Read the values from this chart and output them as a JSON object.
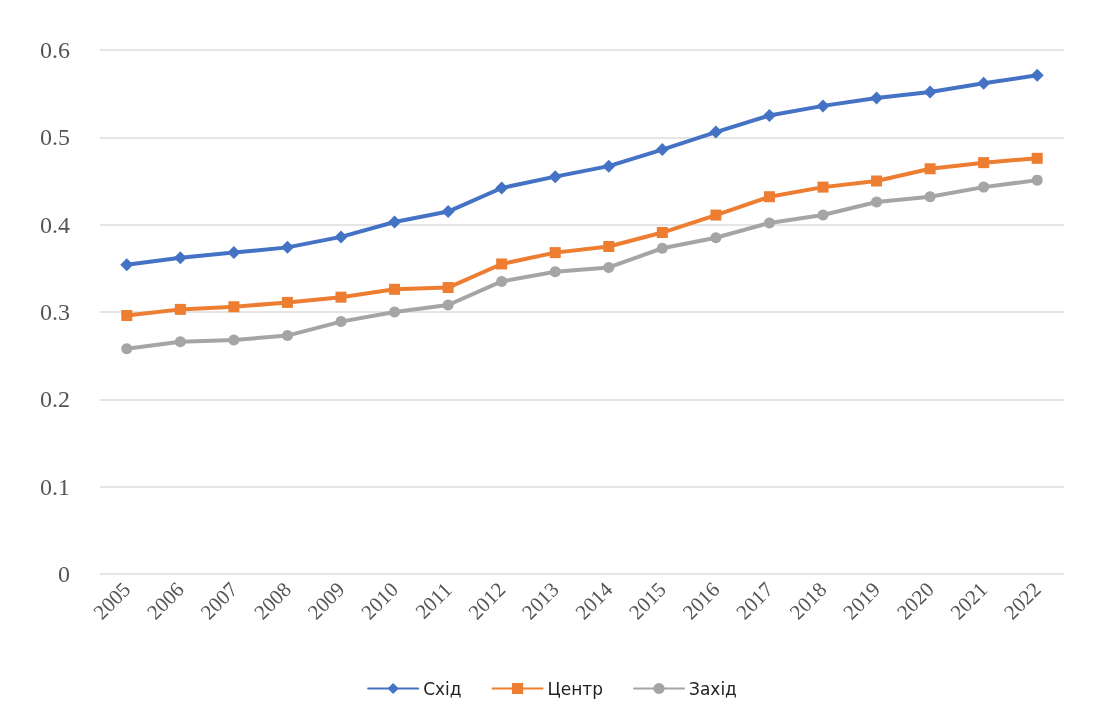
{
  "chart_data": {
    "type": "line",
    "categories": [
      "2005",
      "2006",
      "2007",
      "2008",
      "2009",
      "2010",
      "2011",
      "2012",
      "2013",
      "2014",
      "2015",
      "2016",
      "2017",
      "2018",
      "2019",
      "2020",
      "2021",
      "2022"
    ],
    "series": [
      {
        "name": "Схід",
        "color": "#4472c4",
        "marker": "diamond",
        "values": [
          0.354,
          0.362,
          0.368,
          0.374,
          0.386,
          0.403,
          0.415,
          0.442,
          0.455,
          0.467,
          0.486,
          0.506,
          0.525,
          0.536,
          0.545,
          0.552,
          0.562,
          0.571
        ]
      },
      {
        "name": "Центр",
        "color": "#ed7d31",
        "marker": "square",
        "values": [
          0.296,
          0.303,
          0.306,
          0.311,
          0.317,
          0.326,
          0.328,
          0.355,
          0.368,
          0.375,
          0.391,
          0.411,
          0.432,
          0.443,
          0.45,
          0.464,
          0.471,
          0.476
        ]
      },
      {
        "name": "Захід",
        "color": "#a5a5a5",
        "marker": "circle",
        "values": [
          0.258,
          0.266,
          0.268,
          0.273,
          0.289,
          0.3,
          0.308,
          0.335,
          0.346,
          0.351,
          0.373,
          0.385,
          0.402,
          0.411,
          0.426,
          0.432,
          0.443,
          0.451
        ]
      }
    ],
    "ylim": [
      0,
      0.6
    ],
    "yticks": [
      0,
      0.1,
      0.2,
      0.3,
      0.4,
      0.5,
      0.6
    ],
    "grid": "y",
    "legend": "bottom",
    "line_style": "solid"
  }
}
